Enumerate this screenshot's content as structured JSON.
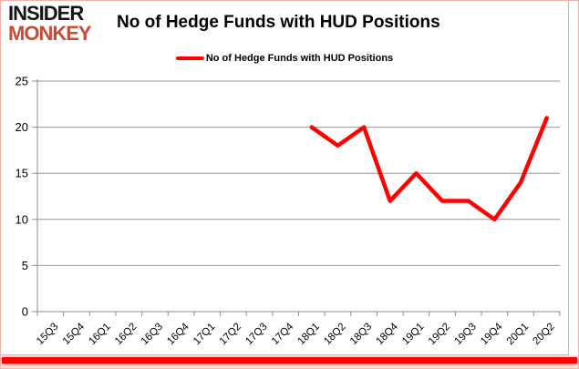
{
  "brand": {
    "line1": "INSIDER",
    "line2": "MONKEY",
    "line2_color": "#c84b32"
  },
  "header": {
    "title": "No of Hedge Funds with HUD Positions"
  },
  "legend": {
    "label": "No of Hedge Funds with HUD Positions",
    "line_color": "#ff0000"
  },
  "chart_data": {
    "type": "line",
    "title": "No of Hedge Funds with HUD Positions",
    "categories": [
      "15Q3",
      "15Q4",
      "16Q1",
      "16Q2",
      "16Q3",
      "16Q4",
      "17Q1",
      "17Q2",
      "17Q3",
      "17Q4",
      "18Q1",
      "18Q2",
      "18Q3",
      "18Q4",
      "19Q1",
      "19Q2",
      "19Q3",
      "19Q4",
      "20Q1",
      "20Q2"
    ],
    "series": [
      {
        "name": "No of Hedge Funds with HUD Positions",
        "color": "#ff0000",
        "values": [
          null,
          null,
          null,
          null,
          null,
          null,
          null,
          null,
          null,
          null,
          20,
          18,
          20,
          12,
          15,
          12,
          12,
          10,
          14,
          21
        ]
      }
    ],
    "xlabel": "",
    "ylabel": "",
    "ylim": [
      0,
      25
    ],
    "yticks": [
      0,
      5,
      10,
      15,
      20,
      25
    ],
    "grid": true,
    "legend_position": "top",
    "gridline_color": "#969696",
    "axis_color": "#8c8c8c",
    "tick_label_color": "#000000"
  },
  "footer": {
    "accent_bar_color": "#ff0000"
  }
}
